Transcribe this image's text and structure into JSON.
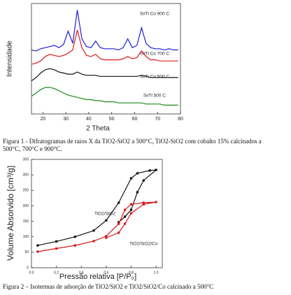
{
  "chart_data": [
    {
      "type": "line",
      "xlabel": "2 Theta",
      "ylabel": "Intensidade",
      "x": [
        15,
        17,
        19,
        21,
        23,
        25,
        27,
        29,
        31,
        33,
        35,
        37,
        39,
        41,
        43,
        45,
        47,
        49,
        51,
        53,
        55,
        57,
        59,
        61,
        63,
        65,
        67,
        69,
        71,
        73,
        75,
        77,
        79
      ],
      "xlim": [
        15,
        80
      ],
      "xticks": [
        20,
        30,
        40,
        50,
        60,
        70,
        80
      ],
      "ylim": [
        0,
        100
      ],
      "series": [
        {
          "name": "Si/Ti Co 900 C",
          "color": "#1f1fd8",
          "values": [
            58,
            57,
            59,
            60,
            61,
            62,
            60,
            63,
            75,
            64,
            94,
            68,
            61,
            60,
            66,
            60,
            59,
            59,
            59,
            58,
            60,
            68,
            60,
            62,
            78,
            64,
            60,
            59,
            59,
            58,
            59,
            58,
            58
          ]
        },
        {
          "name": "Si/Ti Co 700 C",
          "color": "#e01818",
          "values": [
            45,
            46,
            48,
            52,
            54,
            53,
            52,
            53,
            55,
            58,
            76,
            60,
            53,
            52,
            54,
            50,
            49,
            49,
            49,
            49,
            50,
            52,
            50,
            51,
            57,
            52,
            49,
            49,
            48,
            48,
            48,
            48,
            48
          ]
        },
        {
          "name": "Si/Ti Co 500 C",
          "color": "#111111",
          "values": [
            30,
            33,
            37,
            40,
            41,
            40,
            38,
            37,
            36,
            36,
            38,
            36,
            35,
            35,
            35,
            34,
            34,
            34,
            34,
            34,
            34,
            34,
            34,
            34,
            35,
            34,
            33,
            33,
            33,
            33,
            33,
            33,
            33
          ]
        },
        {
          "name": "Si/Ti 500 C",
          "color": "#1a8a1a",
          "values": [
            16,
            19,
            22,
            24,
            24,
            23,
            21,
            19,
            17,
            16,
            15,
            14,
            13,
            13,
            12,
            12,
            11,
            11,
            11,
            10,
            10,
            10,
            10,
            10,
            10,
            9,
            9,
            9,
            9,
            8,
            8,
            8,
            8
          ]
        }
      ]
    },
    {
      "type": "line",
      "xlabel": "Pressão relativa [P/P₀]",
      "ylabel": "Volume Absorvido [cm³/g]",
      "xlim": [
        0,
        1.05
      ],
      "xticks": [
        {
          "value": 0,
          "label": "0.0"
        },
        {
          "value": 0.2,
          "label": "0.2"
        },
        {
          "value": 0.4,
          "label": "0.4"
        },
        {
          "value": 0.6,
          "label": "0.6"
        },
        {
          "value": 0.8,
          "label": "0.8"
        },
        {
          "value": 1,
          "label": "1.0"
        }
      ],
      "ylim": [
        0,
        350
      ],
      "yticks": [
        0,
        50,
        100,
        150,
        200,
        250,
        300,
        350
      ],
      "series": [
        {
          "name": "TiO2/SiO2",
          "color": "#111111",
          "x": [
            0.05,
            0.2,
            0.35,
            0.5,
            0.6,
            0.7,
            0.8,
            0.85,
            0.95,
            1.0,
            0.9,
            0.85,
            0.8,
            0.75,
            0.7
          ],
          "values": [
            72,
            85,
            100,
            120,
            153,
            210,
            289,
            305,
            314,
            316,
            282,
            244,
            187,
            165,
            147
          ]
        },
        {
          "name": "TiO2/SiO2/Co",
          "color": "#d81818",
          "x": [
            0.05,
            0.2,
            0.35,
            0.5,
            0.6,
            0.7,
            0.75,
            0.8,
            0.9,
            1.0,
            0.9,
            0.8,
            0.75,
            0.7,
            0.6
          ],
          "values": [
            52,
            62,
            72,
            86,
            102,
            142,
            187,
            205,
            210,
            212,
            205,
            176,
            142,
            113,
            97
          ]
        }
      ]
    }
  ],
  "captions": [
    "Figura 1 - Difratogramas de raios X da TiO2-SiO2 a 500°C, TiO2-SiO2 com cobalto 15% calcinados a 500°C, 700°C e 900°C.",
    "Figura 2 – Isotermas de adsorção de TiO2/SiO2 e TiO2/SiO2/Co calcinado a 500°C"
  ]
}
